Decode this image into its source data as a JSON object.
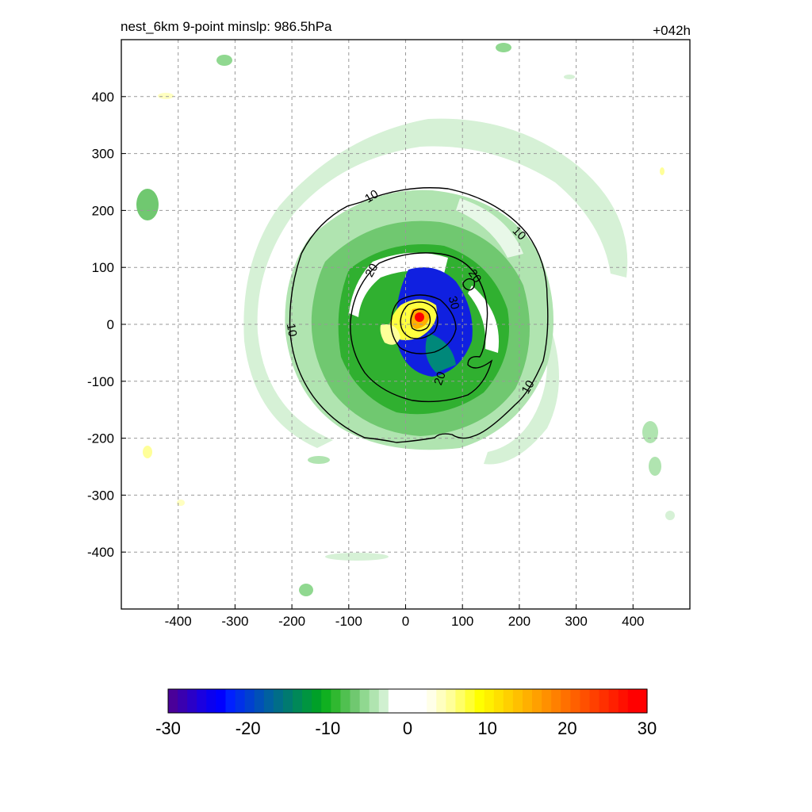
{
  "chart_data": {
    "type": "contour",
    "title_left": "nest_6km  9-point minslp: 986.5hPa",
    "title_right": "+042h",
    "xlim": [
      -500,
      500
    ],
    "ylim": [
      -500,
      500
    ],
    "xticks": [
      -400,
      -300,
      -200,
      -100,
      0,
      100,
      200,
      300,
      400
    ],
    "yticks": [
      -400,
      -300,
      -200,
      -100,
      0,
      100,
      200,
      300,
      400
    ],
    "grid": true,
    "storm_center": {
      "x": 22,
      "y": 12
    },
    "contour_levels": [
      10,
      20,
      30
    ],
    "contour_labels": [
      {
        "text": "10",
        "x": -60,
        "y": 225,
        "rot": -32
      },
      {
        "text": "10",
        "x": 200,
        "y": 160,
        "rot": 45
      },
      {
        "text": "10",
        "x": -200,
        "y": -10,
        "rot": 80
      },
      {
        "text": "10",
        "x": 215,
        "y": -110,
        "rot": -60
      },
      {
        "text": "20",
        "x": -60,
        "y": 95,
        "rot": -60
      },
      {
        "text": "20",
        "x": 122,
        "y": 85,
        "rot": 55
      },
      {
        "text": "20",
        "x": 60,
        "y": -95,
        "rot": -70
      },
      {
        "text": "30",
        "x": 85,
        "y": 38,
        "rot": 75
      }
    ],
    "colorbar": {
      "min": -30,
      "max": 30,
      "ticks": [
        -30,
        -20,
        -10,
        0,
        10,
        20,
        30
      ],
      "colors": [
        "#4a0099",
        "#3a00b0",
        "#2a00c8",
        "#1a00e0",
        "#0a00f0",
        "#0000ff",
        "#0020ff",
        "#0030e8",
        "#0040d0",
        "#0050b8",
        "#0060a0",
        "#006d88",
        "#007a70",
        "#008858",
        "#009540",
        "#00a028",
        "#10b020",
        "#30b830",
        "#50c050",
        "#70c870",
        "#90d890",
        "#b0e4b0",
        "#d0f0d0",
        "#ffffff",
        "#ffffff",
        "#ffffff",
        "#ffffff",
        "#ffffe8",
        "#ffffc0",
        "#ffff99",
        "#ffff66",
        "#ffff33",
        "#ffff00",
        "#fff000",
        "#ffe000",
        "#ffd000",
        "#ffc000",
        "#ffb000",
        "#ffa000",
        "#ff9000",
        "#ff8000",
        "#ff7000",
        "#ff6000",
        "#ff5000",
        "#ff4000",
        "#ff3000",
        "#ff2000",
        "#ff1000",
        "#ff0000",
        "#ff0000"
      ]
    }
  }
}
